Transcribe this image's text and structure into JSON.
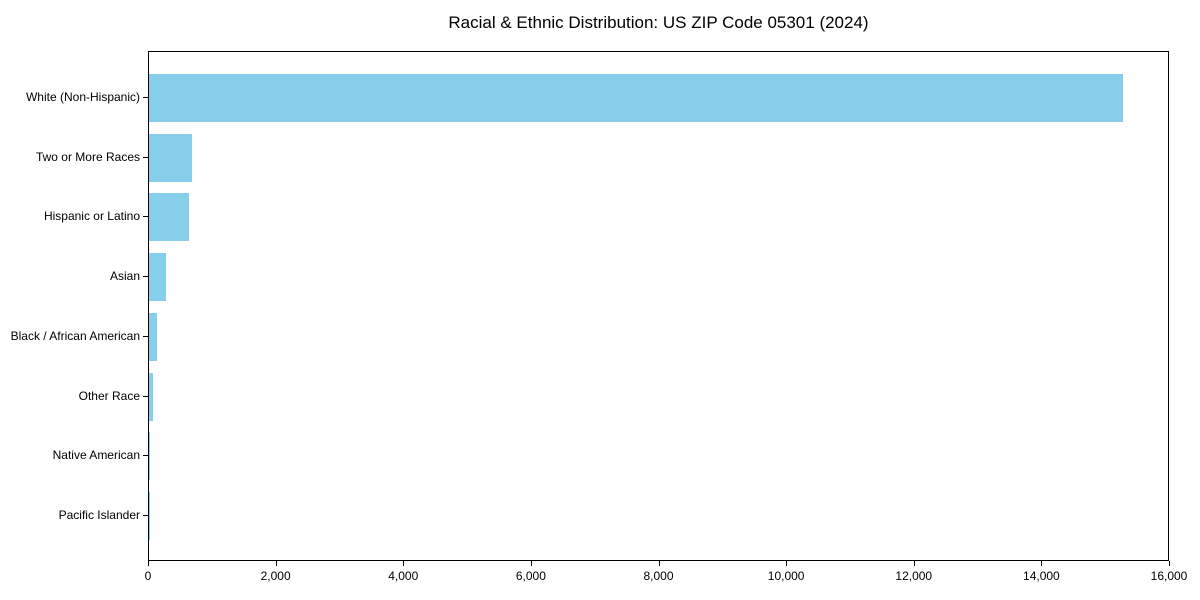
{
  "chart_data": {
    "type": "bar",
    "orientation": "horizontal",
    "title": "Racial & Ethnic Distribution: US ZIP Code 05301 (2024)",
    "categories": [
      "White (Non-Hispanic)",
      "Two or More Races",
      "Hispanic or Latino",
      "Asian",
      "Black / African American",
      "Other Race",
      "Native American",
      "Pacific Islander"
    ],
    "values": [
      15260,
      670,
      630,
      270,
      125,
      60,
      20,
      10
    ],
    "xlabel": "",
    "ylabel": "",
    "xlim": [
      0,
      16000
    ],
    "x_ticks": [
      0,
      2000,
      4000,
      6000,
      8000,
      10000,
      12000,
      14000,
      16000
    ],
    "x_tick_labels": [
      "0",
      "2,000",
      "4,000",
      "6,000",
      "8,000",
      "10,000",
      "12,000",
      "14,000",
      "16,000"
    ],
    "grid": false,
    "legend_position": "none",
    "colors": {
      "bar": "#87CEEB",
      "axis": "#000000",
      "text": "#000000",
      "background": "#FFFFFF"
    }
  }
}
